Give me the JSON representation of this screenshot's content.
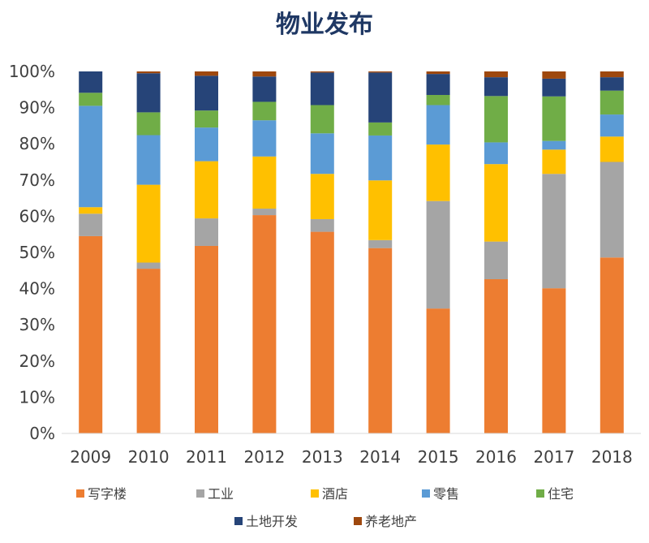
{
  "chart_data": {
    "type": "bar",
    "stacked": true,
    "percent": true,
    "title": "物业发布",
    "xlabel": "",
    "ylabel": "",
    "ylim": [
      0,
      100
    ],
    "y_ticks": [
      "0%",
      "10%",
      "20%",
      "30%",
      "40%",
      "50%",
      "60%",
      "70%",
      "80%",
      "90%",
      "100%"
    ],
    "categories": [
      "2009",
      "2010",
      "2011",
      "2012",
      "2013",
      "2014",
      "2015",
      "2016",
      "2017",
      "2018"
    ],
    "legend_position": "bottom",
    "grid": false,
    "series": [
      {
        "name": "写字楼",
        "color": "#ed7d31",
        "values": [
          54.5,
          45.5,
          51.8,
          60.3,
          55.7,
          51.2,
          34.5,
          42.6,
          40.1,
          48.6
        ]
      },
      {
        "name": "工业",
        "color": "#a5a5a5",
        "values": [
          6.2,
          1.7,
          7.6,
          1.8,
          3.5,
          2.2,
          29.7,
          10.4,
          31.6,
          26.4
        ]
      },
      {
        "name": "酒店",
        "color": "#ffc000",
        "values": [
          1.8,
          21.5,
          15.8,
          14.4,
          12.5,
          16.5,
          15.6,
          21.4,
          6.7,
          7.0
        ]
      },
      {
        "name": "零售",
        "color": "#5b9bd5",
        "values": [
          28.0,
          13.7,
          9.3,
          10.0,
          11.2,
          12.4,
          10.9,
          6.0,
          2.4,
          6.1
        ]
      },
      {
        "name": "住宅",
        "color": "#70ad47",
        "values": [
          3.6,
          6.3,
          4.7,
          5.1,
          7.8,
          3.6,
          2.8,
          12.8,
          12.3,
          6.6
        ]
      },
      {
        "name": "土地开发",
        "color": "#264478",
        "values": [
          5.9,
          10.8,
          9.6,
          7.0,
          9.0,
          13.8,
          5.8,
          5.2,
          4.9,
          3.7
        ]
      },
      {
        "name": "养老地产",
        "color": "#9e480e",
        "values": [
          0.0,
          0.5,
          1.2,
          1.4,
          0.3,
          0.3,
          0.7,
          1.6,
          2.0,
          1.6
        ]
      }
    ]
  }
}
